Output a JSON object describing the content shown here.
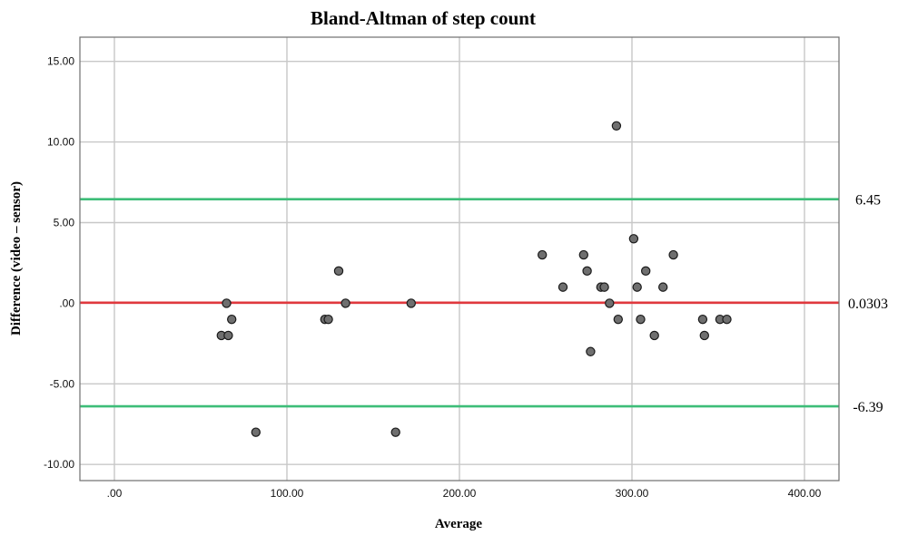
{
  "chart_data": {
    "type": "scatter",
    "title": "Bland-Altman of step count",
    "xlabel": "Average",
    "ylabel": "Difference (video – sensor)",
    "xlim": [
      -20,
      420
    ],
    "ylim": [
      -11,
      16.5
    ],
    "x_ticks": [
      0,
      100,
      200,
      300,
      400
    ],
    "x_tick_labels": [
      ".00",
      "100.00",
      "200.00",
      "300.00",
      "400.00"
    ],
    "y_ticks": [
      15,
      10,
      5,
      0,
      -5,
      -10
    ],
    "y_tick_labels": [
      "15.00",
      "10.00",
      "5.00",
      ".00",
      "-5.00",
      "-10.00"
    ],
    "grid": true,
    "reference_lines": [
      {
        "value": 6.45,
        "label": "6.45",
        "color": "#3dbd78"
      },
      {
        "value": 0.0303,
        "label": "0.0303",
        "color": "#e0393e"
      },
      {
        "value": -6.39,
        "label": "-6.39",
        "color": "#3dbd78"
      }
    ],
    "points": [
      {
        "x": 62,
        "y": -2
      },
      {
        "x": 65,
        "y": 0
      },
      {
        "x": 66,
        "y": -2
      },
      {
        "x": 68,
        "y": -1
      },
      {
        "x": 82,
        "y": -8
      },
      {
        "x": 122,
        "y": -1
      },
      {
        "x": 124,
        "y": -1
      },
      {
        "x": 130,
        "y": 2
      },
      {
        "x": 134,
        "y": 0
      },
      {
        "x": 163,
        "y": -8
      },
      {
        "x": 172,
        "y": 0
      },
      {
        "x": 248,
        "y": 3
      },
      {
        "x": 260,
        "y": 1
      },
      {
        "x": 272,
        "y": 3
      },
      {
        "x": 274,
        "y": 2
      },
      {
        "x": 276,
        "y": -3
      },
      {
        "x": 282,
        "y": 1
      },
      {
        "x": 284,
        "y": 1
      },
      {
        "x": 287,
        "y": 0
      },
      {
        "x": 291,
        "y": 11
      },
      {
        "x": 292,
        "y": -1
      },
      {
        "x": 301,
        "y": 4
      },
      {
        "x": 303,
        "y": 1
      },
      {
        "x": 305,
        "y": -1
      },
      {
        "x": 308,
        "y": 2
      },
      {
        "x": 313,
        "y": -2
      },
      {
        "x": 318,
        "y": 1
      },
      {
        "x": 324,
        "y": 3
      },
      {
        "x": 341,
        "y": -1
      },
      {
        "x": 342,
        "y": -2
      },
      {
        "x": 351,
        "y": -1
      },
      {
        "x": 355,
        "y": -1
      }
    ],
    "point_color": "#6f6f6f"
  }
}
